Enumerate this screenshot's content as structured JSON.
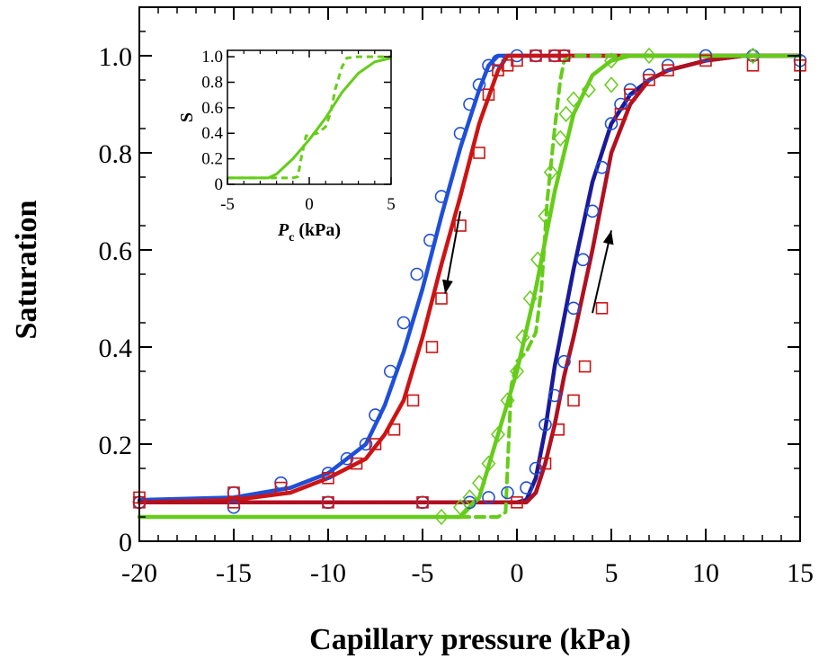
{
  "chart_data": {
    "type": "scatter",
    "xlabel": "Capillary pressure (kPa)",
    "ylabel": "Saturation",
    "xlim": [
      -20,
      15
    ],
    "ylim": [
      0,
      1.1
    ],
    "xticks": [
      -20,
      -15,
      -10,
      -5,
      0,
      5,
      10,
      15
    ],
    "xtick_labels": [
      "-20",
      "-15",
      "-10",
      "-5",
      "0",
      "5",
      "10",
      "15"
    ],
    "yticks": [
      0,
      0.2,
      0.4,
      0.6,
      0.8,
      1.0
    ],
    "ytick_labels": [
      "0",
      "0.2",
      "0.4",
      "0.6",
      "0.8",
      "1.0"
    ],
    "grid": false,
    "colors": {
      "blue": "#1f4fd8",
      "red": "#cc1414",
      "green": "#66cc1a",
      "darkblue": "#1a1a99",
      "darkred": "#b01020"
    },
    "series": [
      {
        "marker": "circle",
        "color": "#1f4fd8",
        "points": [
          [
            -20,
            0.08
          ],
          [
            -15,
            0.1
          ],
          [
            -12.5,
            0.12
          ],
          [
            -10,
            0.14
          ],
          [
            -9,
            0.17
          ],
          [
            -8,
            0.2
          ],
          [
            -7.5,
            0.26
          ],
          [
            -6.7,
            0.35
          ],
          [
            -6,
            0.45
          ],
          [
            -5.3,
            0.55
          ],
          [
            -4.6,
            0.62
          ],
          [
            -4,
            0.71
          ],
          [
            -3,
            0.84
          ],
          [
            -2.5,
            0.9
          ],
          [
            -2,
            0.94
          ],
          [
            -1.5,
            0.98
          ],
          [
            -1,
            0.99
          ],
          [
            0,
            1.0
          ],
          [
            1,
            1.0
          ],
          [
            2,
            1.0
          ],
          [
            2.5,
            1.0
          ]
        ]
      },
      {
        "marker": "circle",
        "color": "#1f4fd8",
        "points": [
          [
            -20,
            0.08
          ],
          [
            -15,
            0.07
          ],
          [
            -10,
            0.08
          ],
          [
            -5,
            0.08
          ],
          [
            -2.5,
            0.08
          ],
          [
            -1.5,
            0.09
          ],
          [
            -0.5,
            0.1
          ],
          [
            0.5,
            0.11
          ],
          [
            1,
            0.15
          ],
          [
            1.5,
            0.24
          ],
          [
            2,
            0.3
          ],
          [
            2.5,
            0.37
          ],
          [
            3,
            0.48
          ],
          [
            3.5,
            0.58
          ],
          [
            4,
            0.68
          ],
          [
            4.5,
            0.77
          ],
          [
            5,
            0.86
          ],
          [
            5.5,
            0.9
          ],
          [
            6,
            0.93
          ],
          [
            7,
            0.96
          ],
          [
            8,
            0.98
          ],
          [
            10,
            1.0
          ],
          [
            12.5,
            1.0
          ],
          [
            15,
            0.99
          ]
        ]
      },
      {
        "marker": "square",
        "color": "#cc1414",
        "points": [
          [
            -20,
            0.09
          ],
          [
            -15,
            0.1
          ],
          [
            -12.5,
            0.11
          ],
          [
            -10,
            0.13
          ],
          [
            -8.5,
            0.16
          ],
          [
            -7.5,
            0.2
          ],
          [
            -6.5,
            0.23
          ],
          [
            -5.5,
            0.29
          ],
          [
            -4.5,
            0.4
          ],
          [
            -4,
            0.5
          ],
          [
            -3,
            0.65
          ],
          [
            -2,
            0.8
          ],
          [
            -1.5,
            0.92
          ],
          [
            -1,
            0.97
          ],
          [
            -0.5,
            0.98
          ],
          [
            0,
            0.99
          ],
          [
            1,
            1.0
          ],
          [
            2,
            1.0
          ],
          [
            2.5,
            1.0
          ]
        ]
      },
      {
        "marker": "square",
        "color": "#cc1414",
        "points": [
          [
            -20,
            0.08
          ],
          [
            -15,
            0.08
          ],
          [
            -10,
            0.08
          ],
          [
            -5,
            0.08
          ],
          [
            0,
            0.08
          ],
          [
            1.5,
            0.16
          ],
          [
            2.2,
            0.23
          ],
          [
            3,
            0.29
          ],
          [
            3.6,
            0.36
          ],
          [
            4.5,
            0.48
          ],
          [
            5.5,
            0.88
          ],
          [
            6,
            0.92
          ],
          [
            7,
            0.95
          ],
          [
            8,
            0.97
          ],
          [
            10,
            0.99
          ],
          [
            12.5,
            0.98
          ],
          [
            15,
            0.98
          ]
        ]
      },
      {
        "marker": "diamond",
        "color": "#66cc1a",
        "points": [
          [
            -4,
            0.05
          ],
          [
            -3,
            0.07
          ],
          [
            -2.5,
            0.09
          ],
          [
            -2,
            0.12
          ],
          [
            -1.5,
            0.16
          ],
          [
            -1,
            0.22
          ],
          [
            -0.5,
            0.29
          ],
          [
            0,
            0.35
          ],
          [
            0.3,
            0.42
          ],
          [
            0.7,
            0.5
          ],
          [
            1.1,
            0.58
          ],
          [
            1.5,
            0.67
          ],
          [
            1.8,
            0.76
          ],
          [
            2.3,
            0.83
          ],
          [
            2.6,
            0.88
          ],
          [
            3,
            0.91
          ],
          [
            3.8,
            0.93
          ],
          [
            5,
            0.94
          ],
          [
            5,
            0.99
          ],
          [
            7,
            1.0
          ],
          [
            12.5,
            1.0
          ]
        ]
      }
    ],
    "fit_curves": [
      {
        "color": "#1f4fd8",
        "dash": false,
        "points": [
          [
            -20,
            0.085
          ],
          [
            -15,
            0.09
          ],
          [
            -12,
            0.11
          ],
          [
            -10,
            0.14
          ],
          [
            -8,
            0.2
          ],
          [
            -7,
            0.28
          ],
          [
            -6,
            0.39
          ],
          [
            -5,
            0.52
          ],
          [
            -4,
            0.67
          ],
          [
            -3,
            0.81
          ],
          [
            -2,
            0.93
          ],
          [
            -1.5,
            0.98
          ],
          [
            -1,
            1.0
          ],
          [
            15,
            1.0
          ]
        ]
      },
      {
        "color": "#cc1414",
        "dash": false,
        "points": [
          [
            -20,
            0.08
          ],
          [
            -15,
            0.085
          ],
          [
            -12,
            0.1
          ],
          [
            -10,
            0.13
          ],
          [
            -8,
            0.17
          ],
          [
            -7,
            0.22
          ],
          [
            -6,
            0.29
          ],
          [
            -5,
            0.42
          ],
          [
            -4,
            0.57
          ],
          [
            -3,
            0.71
          ],
          [
            -2,
            0.86
          ],
          [
            -1,
            0.97
          ],
          [
            -0.5,
            1.0
          ],
          [
            15,
            1.0
          ]
        ]
      },
      {
        "color": "#1a1a99",
        "dash": false,
        "points": [
          [
            -20,
            0.08
          ],
          [
            0,
            0.08
          ],
          [
            0.5,
            0.085
          ],
          [
            1,
            0.13
          ],
          [
            1.5,
            0.23
          ],
          [
            2,
            0.36
          ],
          [
            2.5,
            0.46
          ],
          [
            3,
            0.56
          ],
          [
            4,
            0.74
          ],
          [
            5,
            0.86
          ],
          [
            6,
            0.92
          ],
          [
            7,
            0.95
          ],
          [
            8,
            0.97
          ],
          [
            10,
            0.99
          ],
          [
            12,
            1.0
          ],
          [
            15,
            1.0
          ]
        ]
      },
      {
        "color": "#b01020",
        "dash": false,
        "points": [
          [
            -20,
            0.08
          ],
          [
            0,
            0.08
          ],
          [
            0.5,
            0.08
          ],
          [
            1,
            0.1
          ],
          [
            1.5,
            0.16
          ],
          [
            2,
            0.24
          ],
          [
            2.5,
            0.34
          ],
          [
            3,
            0.42
          ],
          [
            4,
            0.6
          ],
          [
            5,
            0.8
          ],
          [
            6,
            0.9
          ],
          [
            7,
            0.95
          ],
          [
            8,
            0.97
          ],
          [
            10,
            0.99
          ],
          [
            12,
            1.0
          ],
          [
            15,
            1.0
          ]
        ]
      },
      {
        "color": "#66cc1a",
        "dash": false,
        "points": [
          [
            -20,
            0.05
          ],
          [
            -3,
            0.05
          ],
          [
            -2,
            0.09
          ],
          [
            -1,
            0.22
          ],
          [
            0,
            0.35
          ],
          [
            1,
            0.52
          ],
          [
            2,
            0.72
          ],
          [
            3,
            0.88
          ],
          [
            4,
            0.96
          ],
          [
            5,
            0.99
          ],
          [
            6,
            1.0
          ],
          [
            15,
            1.0
          ]
        ]
      },
      {
        "color": "#66cc1a",
        "dash": true,
        "points": [
          [
            -20,
            0.05
          ],
          [
            -1,
            0.05
          ],
          [
            -0.6,
            0.06
          ],
          [
            -0.5,
            0.15
          ],
          [
            -0.3,
            0.32
          ],
          [
            0,
            0.37
          ],
          [
            0.5,
            0.39
          ],
          [
            1,
            0.43
          ],
          [
            1.3,
            0.52
          ],
          [
            1.6,
            0.7
          ],
          [
            2,
            0.85
          ],
          [
            2.3,
            0.95
          ],
          [
            2.5,
            0.99
          ],
          [
            3,
            1.0
          ],
          [
            15,
            1.0
          ]
        ]
      }
    ],
    "arrows": [
      {
        "from": [
          -3.0,
          0.68
        ],
        "to": [
          -3.8,
          0.51
        ]
      },
      {
        "from": [
          4.0,
          0.47
        ],
        "to": [
          5.0,
          0.64
        ]
      }
    ],
    "inset": {
      "xlabel": "P",
      "xlabel_sub": "c",
      "xlabel_unit": " (kPa)",
      "ylabel": "S",
      "xlim": [
        -5,
        5
      ],
      "ylim": [
        0,
        1.05
      ],
      "xticks": [
        -5,
        0,
        5
      ],
      "xtick_labels": [
        "-5",
        "0",
        "5"
      ],
      "yticks": [
        0,
        0.2,
        0.4,
        0.6,
        0.8,
        1.0
      ],
      "ytick_labels": [
        "0",
        "0.2",
        "0.4",
        "0.6",
        "0.8",
        "1.0"
      ],
      "curves": [
        {
          "color": "#66cc1a",
          "dash": false,
          "points": [
            [
              -5,
              0.05
            ],
            [
              -2.5,
              0.05
            ],
            [
              -2,
              0.08
            ],
            [
              -1,
              0.2
            ],
            [
              0,
              0.35
            ],
            [
              1,
              0.52
            ],
            [
              2,
              0.72
            ],
            [
              3,
              0.87
            ],
            [
              4,
              0.96
            ],
            [
              5,
              0.99
            ]
          ]
        },
        {
          "color": "#66cc1a",
          "dash": true,
          "points": [
            [
              -5,
              0.05
            ],
            [
              -1,
              0.05
            ],
            [
              -0.7,
              0.06
            ],
            [
              -0.5,
              0.2
            ],
            [
              -0.2,
              0.38
            ],
            [
              0.5,
              0.4
            ],
            [
              1.0,
              0.45
            ],
            [
              1.3,
              0.56
            ],
            [
              1.6,
              0.75
            ],
            [
              2,
              0.92
            ],
            [
              2.3,
              0.99
            ],
            [
              3,
              1.0
            ],
            [
              5,
              1.0
            ]
          ]
        }
      ]
    }
  }
}
